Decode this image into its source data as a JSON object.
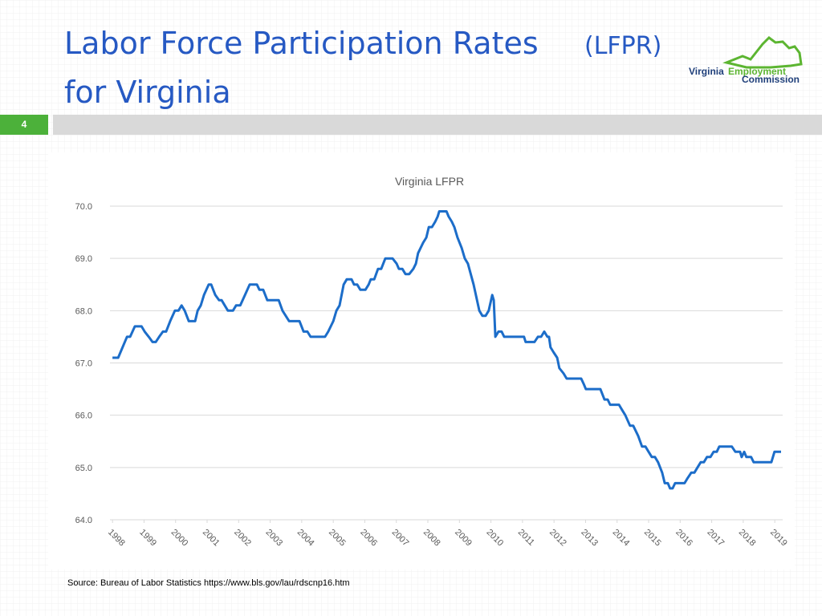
{
  "slide": {
    "title_main": "Labor Force Participation Rates",
    "title_abbr": "(LFPR)",
    "title_line2": "for Virginia",
    "number": "4",
    "logo": [
      "Virginia",
      "Employment",
      "Commission"
    ],
    "source": "Source: Bureau of Labor Statistics  https://www.bls.gov/lau/rdscnp16.htm"
  },
  "chart_data": {
    "type": "line",
    "title": "Virginia LFPR",
    "x": [
      1998.0,
      1998.18,
      1998.46,
      1998.56,
      1998.71,
      1998.92,
      1999.02,
      1999.15,
      1999.27,
      1999.37,
      1999.48,
      1999.6,
      1999.7,
      1999.83,
      1999.98,
      2000.09,
      2000.19,
      2000.29,
      2000.42,
      2000.62,
      2000.7,
      2000.8,
      2000.9,
      2001.05,
      2001.13,
      2001.26,
      2001.38,
      2001.46,
      2001.56,
      2001.66,
      2001.82,
      2001.92,
      2002.05,
      2002.2,
      2002.35,
      2002.58,
      2002.66,
      2002.78,
      2002.91,
      2003.27,
      2003.39,
      2003.6,
      2003.93,
      2004.06,
      2004.18,
      2004.28,
      2004.74,
      2004.84,
      2005.0,
      2005.1,
      2005.2,
      2005.33,
      2005.43,
      2005.58,
      2005.66,
      2005.76,
      2005.86,
      2006.02,
      2006.12,
      2006.19,
      2006.3,
      2006.42,
      2006.52,
      2006.65,
      2006.88,
      2007.01,
      2007.08,
      2007.19,
      2007.29,
      2007.41,
      2007.54,
      2007.62,
      2007.69,
      2007.85,
      2007.95,
      2008.03,
      2008.13,
      2008.23,
      2008.31,
      2008.36,
      2008.59,
      2008.66,
      2008.76,
      2008.84,
      2008.94,
      2009.07,
      2009.17,
      2009.27,
      2009.45,
      2009.63,
      2009.73,
      2009.83,
      2009.93,
      2010.04,
      2010.09,
      2010.14,
      2010.24,
      2010.34,
      2010.42,
      2011.05,
      2011.1,
      2011.38,
      2011.49,
      2011.59,
      2011.69,
      2011.79,
      2011.84,
      2011.89,
      2011.99,
      2012.1,
      2012.17,
      2012.3,
      2012.4,
      2012.86,
      2012.94,
      2013.01,
      2013.47,
      2013.6,
      2013.7,
      2013.78,
      2014.06,
      2014.16,
      2014.26,
      2014.41,
      2014.51,
      2014.67,
      2014.79,
      2014.9,
      2015.0,
      2015.1,
      2015.2,
      2015.3,
      2015.43,
      2015.51,
      2015.61,
      2015.68,
      2015.76,
      2015.84,
      2016.14,
      2016.24,
      2016.35,
      2016.45,
      2016.55,
      2016.65,
      2016.75,
      2016.85,
      2016.96,
      2017.06,
      2017.16,
      2017.24,
      2017.64,
      2017.75,
      2017.9,
      2017.95,
      2018.03,
      2018.1,
      2018.25,
      2018.33,
      2018.89,
      2018.99,
      2019.2
    ],
    "series": [
      {
        "name": "Virginia LFPR",
        "color": "#1c6dc9",
        "values": [
          67.1,
          67.1,
          67.5,
          67.5,
          67.7,
          67.7,
          67.6,
          67.5,
          67.4,
          67.4,
          67.5,
          67.6,
          67.6,
          67.8,
          68.0,
          68.0,
          68.1,
          68.0,
          67.8,
          67.8,
          68.0,
          68.1,
          68.3,
          68.5,
          68.5,
          68.3,
          68.2,
          68.2,
          68.1,
          68.0,
          68.0,
          68.1,
          68.1,
          68.3,
          68.5,
          68.5,
          68.4,
          68.4,
          68.2,
          68.2,
          68.0,
          67.8,
          67.8,
          67.6,
          67.6,
          67.5,
          67.5,
          67.6,
          67.8,
          68.0,
          68.1,
          68.5,
          68.6,
          68.6,
          68.5,
          68.5,
          68.4,
          68.4,
          68.5,
          68.6,
          68.6,
          68.8,
          68.8,
          69.0,
          69.0,
          68.9,
          68.8,
          68.8,
          68.7,
          68.7,
          68.8,
          68.9,
          69.1,
          69.3,
          69.4,
          69.6,
          69.6,
          69.7,
          69.8,
          69.9,
          69.9,
          69.8,
          69.7,
          69.6,
          69.4,
          69.2,
          69.0,
          68.9,
          68.5,
          68.0,
          67.9,
          67.9,
          68.0,
          68.3,
          68.2,
          67.5,
          67.6,
          67.6,
          67.5,
          67.5,
          67.4,
          67.4,
          67.5,
          67.5,
          67.6,
          67.5,
          67.5,
          67.3,
          67.2,
          67.1,
          66.9,
          66.8,
          66.7,
          66.7,
          66.6,
          66.5,
          66.5,
          66.3,
          66.3,
          66.2,
          66.2,
          66.1,
          66.0,
          65.8,
          65.8,
          65.6,
          65.4,
          65.4,
          65.3,
          65.2,
          65.2,
          65.1,
          64.9,
          64.7,
          64.7,
          64.6,
          64.6,
          64.7,
          64.7,
          64.8,
          64.9,
          64.9,
          65.0,
          65.1,
          65.1,
          65.2,
          65.2,
          65.3,
          65.3,
          65.4,
          65.4,
          65.3,
          65.3,
          65.2,
          65.3,
          65.2,
          65.2,
          65.1,
          65.1,
          65.3,
          65.3
        ]
      }
    ],
    "xlim": [
      1997.92,
      2019.25
    ],
    "xticks": [
      1998,
      1999,
      2000,
      2001,
      2002,
      2003,
      2004,
      2005,
      2006,
      2007,
      2008,
      2009,
      2010,
      2011,
      2012,
      2013,
      2014,
      2015,
      2016,
      2017,
      2018,
      2019
    ],
    "ylim": [
      64,
      70
    ],
    "yticks": [
      {
        "value": 64,
        "label": "64.0"
      },
      {
        "value": 65,
        "label": "65.0"
      },
      {
        "value": 66,
        "label": "66.0"
      },
      {
        "value": 67,
        "label": "67.0"
      },
      {
        "value": 68,
        "label": "68.0"
      },
      {
        "value": 69,
        "label": "69.0"
      },
      {
        "value": 70,
        "label": "70.0"
      }
    ],
    "grid": true
  }
}
